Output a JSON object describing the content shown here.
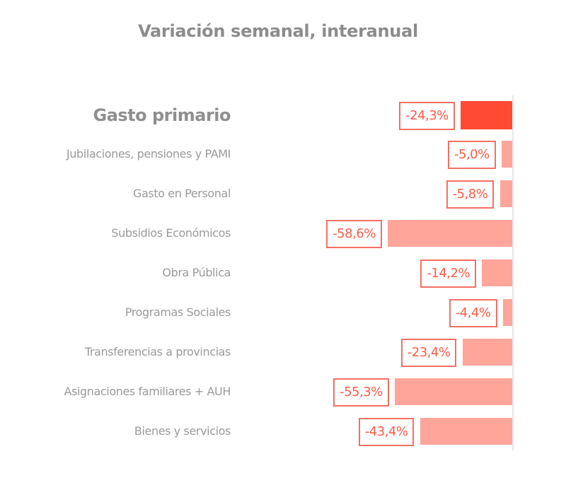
{
  "title": "Variación semanal, interanual",
  "chart_data": {
    "type": "bar",
    "orientation": "horizontal",
    "title": "Variación semanal, interanual",
    "xlabel": "",
    "ylabel": "",
    "grid": false,
    "legend": null,
    "categories": [
      "Gasto primario",
      "Jubilaciones, pensiones y PAMI",
      "Gasto en Personal",
      "Subsidios Económicos",
      "Obra Pública",
      "Programas Sociales",
      "Transferencias a provincias",
      "Asignaciones familiares + AUH",
      "Bienes y servicios"
    ],
    "values": [
      -24.3,
      -5.0,
      -5.8,
      -58.6,
      -14.2,
      -4.4,
      -23.4,
      -55.3,
      -43.4
    ],
    "value_labels": [
      "-24,3%",
      "-5,0%",
      "-5,8%",
      "-58,6%",
      "-14,2%",
      "-4,4%",
      "-23,4%",
      "-55,3%",
      "-43,4%"
    ],
    "unit": "%",
    "highlight_index": 0,
    "colors": {
      "highlight": "#ff4a34",
      "default": "#ffa59a",
      "label_border": "#f56f63",
      "label_text": "#ff5a46"
    }
  },
  "rows": [
    {
      "label": "Gasto primario",
      "value": -24.3,
      "value_label": "-24,3%"
    },
    {
      "label": "Jubilaciones, pensiones y PAMI",
      "value": -5.0,
      "value_label": "-5,0%"
    },
    {
      "label": "Gasto en Personal",
      "value": -5.8,
      "value_label": "-5,8%"
    },
    {
      "label": "Subsidios Económicos",
      "value": -58.6,
      "value_label": "-58,6%"
    },
    {
      "label": "Obra Pública",
      "value": -14.2,
      "value_label": "-14,2%"
    },
    {
      "label": "Programas Sociales",
      "value": -4.4,
      "value_label": "-4,4%"
    },
    {
      "label": "Transferencias a provincias",
      "value": -23.4,
      "value_label": "-23,4%"
    },
    {
      "label": "Asignaciones familiares + AUH",
      "value": -55.3,
      "value_label": "-55,3%"
    },
    {
      "label": "Bienes y servicios",
      "value": -43.4,
      "value_label": "-43,4%"
    }
  ]
}
